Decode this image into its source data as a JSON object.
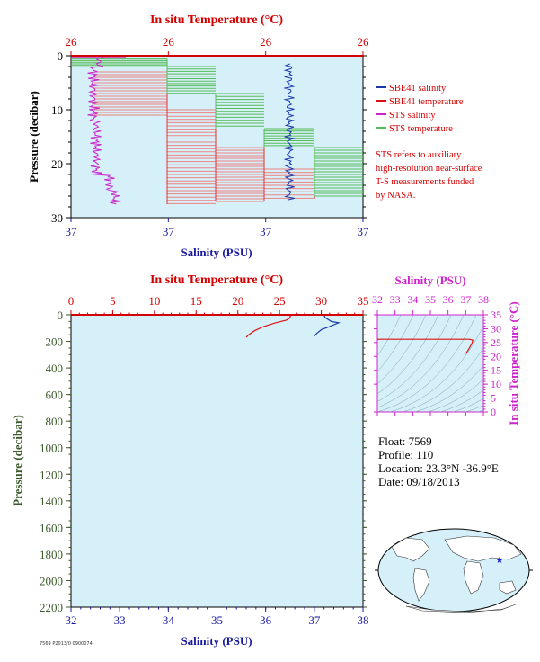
{
  "chart_data": [
    {
      "type": "line",
      "panel": "upper",
      "title": "",
      "top_axis_label": "In situ Temperature (°C)",
      "top_ticks": [
        "26",
        "26",
        "26",
        "26"
      ],
      "xlabel": "Salinity (PSU)",
      "x_ticks": [
        "37",
        "37",
        "37",
        "37"
      ],
      "ylabel": "Pressure (decibar)",
      "y_ticks": [
        "0",
        "10",
        "20",
        "30"
      ],
      "ylim": [
        0,
        30
      ],
      "y_inverted": true,
      "grid": false,
      "legend": [
        {
          "name": "SBE41 salinity",
          "color": "#1a3aaa"
        },
        {
          "name": "SBE41 temperature",
          "color": "#dd1111"
        },
        {
          "name": "STS salinity",
          "color": "#cc22cc"
        },
        {
          "name": "STS temperature",
          "color": "#55bb55"
        }
      ],
      "note": [
        "STS refers to auxiliary",
        "high-resolution near-surface",
        "T-S measurements funded",
        "by NASA."
      ]
    },
    {
      "type": "line",
      "panel": "lower",
      "top_axis_label": "In situ Temperature (°C)",
      "top_ticks": [
        0,
        5,
        10,
        15,
        20,
        25,
        30,
        35
      ],
      "top_lim": [
        0,
        35
      ],
      "xlabel": "Salinity (PSU)",
      "x_ticks": [
        32,
        33,
        34,
        35,
        36,
        37,
        38
      ],
      "xlim": [
        32,
        38
      ],
      "ylabel": "Pressure (decibar)",
      "y_ticks": [
        0,
        200,
        400,
        600,
        800,
        1000,
        1200,
        1400,
        1600,
        1800,
        2000,
        2200
      ],
      "ylim": [
        0,
        2200
      ],
      "y_inverted": true,
      "series": [
        {
          "name": "temperature",
          "axis": "top",
          "color": "#dd1111",
          "points": [
            [
              26.2,
              0
            ],
            [
              26.3,
              10
            ],
            [
              26.2,
              25
            ],
            [
              25.8,
              40
            ],
            [
              24.5,
              60
            ],
            [
              23.0,
              90
            ],
            [
              22.0,
              120
            ],
            [
              21.3,
              150
            ],
            [
              21.0,
              170
            ]
          ]
        },
        {
          "name": "salinity",
          "axis": "bottom",
          "color": "#1a3aaa",
          "points": [
            [
              37.2,
              0
            ],
            [
              37.22,
              20
            ],
            [
              37.35,
              50
            ],
            [
              37.5,
              60
            ],
            [
              37.3,
              90
            ],
            [
              37.15,
              110
            ],
            [
              37.05,
              140
            ],
            [
              37.0,
              160
            ]
          ]
        }
      ]
    },
    {
      "type": "line",
      "panel": "ts-diagram",
      "top_axis_label": "Salinity (PSU)",
      "top_ticks": [
        32,
        33,
        34,
        35,
        36,
        37,
        38
      ],
      "xlim": [
        32,
        38
      ],
      "right_axis_label": "In situ Temperature (°C)",
      "right_ticks": [
        0,
        5,
        10,
        15,
        20,
        25,
        30,
        35
      ],
      "ylim": [
        0,
        35
      ],
      "series": [
        {
          "name": "T-S curve",
          "color": "#dd1111",
          "points": [
            [
              32,
              26.2
            ],
            [
              37.2,
              26.2
            ],
            [
              37.4,
              25.9
            ],
            [
              37.35,
              24.7
            ],
            [
              37.2,
              23.0
            ],
            [
              37.05,
              21.4
            ],
            [
              37.0,
              21.0
            ]
          ]
        }
      ]
    }
  ],
  "info": {
    "float": "Float:  7569",
    "profile": "Profile:  110",
    "location": "Location:  23.3°N  -36.9°E",
    "date": "Date:  09/18/2013"
  },
  "footer_tag": "7569 P2013/0 0900074",
  "colors": {
    "plot_bg": "#d6f0fa",
    "axis_red": "#d40000",
    "salinity_blue": "#1a1aa0",
    "pressure_green": "#3a5a2a",
    "magenta": "#cc22cc"
  }
}
